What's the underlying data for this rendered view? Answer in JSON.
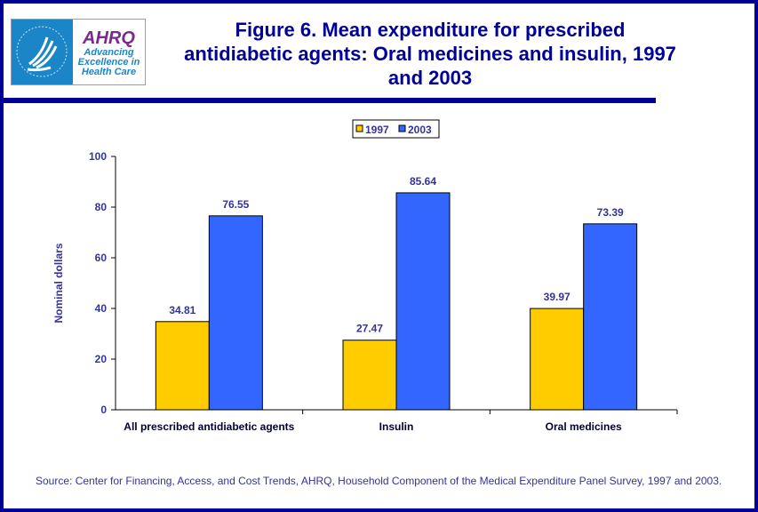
{
  "logo": {
    "text": "AHRQ",
    "tagline": "Advancing Excellence in Health Care"
  },
  "title": "Figure 6. Mean expenditure for prescribed antidiabetic agents: Oral medicines and insulin, 1997 and 2003",
  "source": "Source: Center for Financing, Access, and Cost Trends, AHRQ, Household Component of the Medical Expenditure Panel Survey, 1997 and 2003.",
  "chart_data": {
    "type": "bar",
    "categories": [
      "All prescribed antidiabetic agents",
      "Insulin",
      "Oral medicines"
    ],
    "series": [
      {
        "name": "1997",
        "values": [
          34.81,
          27.47,
          39.97
        ],
        "labels": [
          "34.81",
          "27.47",
          "39.97"
        ],
        "color": "#FFCC00"
      },
      {
        "name": "2003",
        "values": [
          76.55,
          85.64,
          73.39
        ],
        "labels": [
          "76.55",
          "85.64",
          "73.39"
        ],
        "color": "#3366FF"
      }
    ],
    "ylabel": "Nominal dollars",
    "xlabel": "",
    "ylim": [
      0,
      100
    ],
    "yticks": [
      0,
      20,
      40,
      60,
      80,
      100
    ],
    "grid": false,
    "legend": "top"
  }
}
